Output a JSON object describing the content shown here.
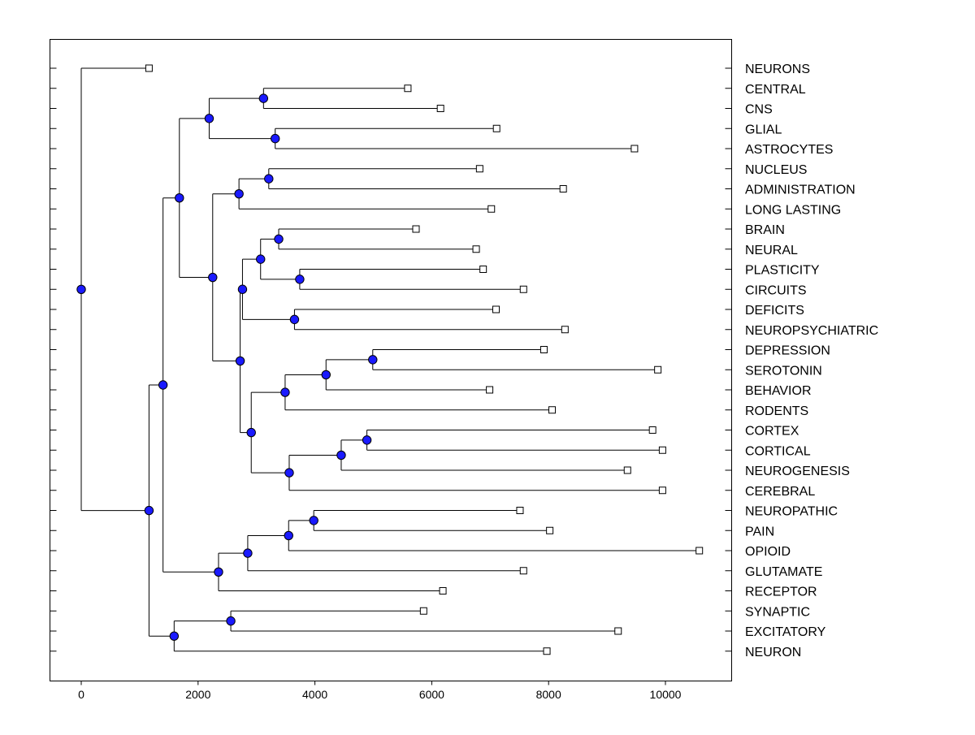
{
  "chart_data": {
    "type": "dendrogram",
    "orientation": "horizontal",
    "x_axis": {
      "ticks": [
        0,
        2000,
        4000,
        6000,
        8000,
        10000
      ],
      "range": [
        -530,
        11080
      ]
    },
    "leaves": [
      {
        "label": "NEURONS",
        "x": 1160
      },
      {
        "label": "CENTRAL",
        "x": 5590
      },
      {
        "label": "CNS",
        "x": 6150
      },
      {
        "label": "GLIAL",
        "x": 7110
      },
      {
        "label": "ASTROCYTES",
        "x": 9470
      },
      {
        "label": "NUCLEUS",
        "x": 6820
      },
      {
        "label": "ADMINISTRATION",
        "x": 8250
      },
      {
        "label": "LONG LASTING",
        "x": 7020
      },
      {
        "label": "BRAIN",
        "x": 5730
      },
      {
        "label": "NEURAL",
        "x": 6760
      },
      {
        "label": "PLASTICITY",
        "x": 6880
      },
      {
        "label": "CIRCUITS",
        "x": 7570
      },
      {
        "label": "DEFICITS",
        "x": 7100
      },
      {
        "label": "NEUROPSYCHIATRIC",
        "x": 8280
      },
      {
        "label": "DEPRESSION",
        "x": 7920
      },
      {
        "label": "SEROTONIN",
        "x": 9870
      },
      {
        "label": "BEHAVIOR",
        "x": 6990
      },
      {
        "label": "RODENTS",
        "x": 8060
      },
      {
        "label": "CORTEX",
        "x": 9780
      },
      {
        "label": "CORTICAL",
        "x": 9950
      },
      {
        "label": "NEUROGENESIS",
        "x": 9350
      },
      {
        "label": "CEREBRAL",
        "x": 9950
      },
      {
        "label": "NEUROPATHIC",
        "x": 7510
      },
      {
        "label": "PAIN",
        "x": 8020
      },
      {
        "label": "OPIOID",
        "x": 10580
      },
      {
        "label": "GLUTAMATE",
        "x": 7570
      },
      {
        "label": "RECEPTOR",
        "x": 6190
      },
      {
        "label": "SYNAPTIC",
        "x": 5860
      },
      {
        "label": "EXCITATORY",
        "x": 9190
      },
      {
        "label": "NEURON",
        "x": 7970
      }
    ],
    "merges": [
      {
        "id": "n_central_cns",
        "x": 3120,
        "children": [
          "L1",
          "L2"
        ]
      },
      {
        "id": "n_glial_astro",
        "x": 3320,
        "children": [
          "L3",
          "L4"
        ]
      },
      {
        "id": "n_cns_group",
        "x": 2190,
        "children": [
          "n_central_cns",
          "n_glial_astro"
        ]
      },
      {
        "id": "n_nucleus_admin",
        "x": 3210,
        "children": [
          "L5",
          "L6"
        ]
      },
      {
        "id": "n_nucleus_group",
        "x": 2700,
        "children": [
          "n_nucleus_admin",
          "L7"
        ]
      },
      {
        "id": "n_brain_neural",
        "x": 3380,
        "children": [
          "L8",
          "L9"
        ]
      },
      {
        "id": "n_plast_circ",
        "x": 3740,
        "children": [
          "L10",
          "L11"
        ]
      },
      {
        "id": "n_brain_group",
        "x": 3070,
        "children": [
          "n_brain_neural",
          "n_plast_circ"
        ]
      },
      {
        "id": "n_deficits",
        "x": 3650,
        "children": [
          "L12",
          "L13"
        ]
      },
      {
        "id": "n_brain_deficits",
        "x": 2760,
        "children": [
          "n_brain_group",
          "n_deficits"
        ]
      },
      {
        "id": "n_depr_sero",
        "x": 4990,
        "children": [
          "L14",
          "L15"
        ]
      },
      {
        "id": "n_depr_behav",
        "x": 4190,
        "children": [
          "n_depr_sero",
          "L16"
        ]
      },
      {
        "id": "n_depr_rodents",
        "x": 3490,
        "children": [
          "n_depr_behav",
          "L17"
        ]
      },
      {
        "id": "n_cortex_cortical",
        "x": 4890,
        "children": [
          "L18",
          "L19"
        ]
      },
      {
        "id": "n_cortex_neurog",
        "x": 4450,
        "children": [
          "n_cortex_cortical",
          "L20"
        ]
      },
      {
        "id": "n_cortex_cerebral",
        "x": 3560,
        "children": [
          "n_cortex_neurog",
          "L21"
        ]
      },
      {
        "id": "n_depr_cortex",
        "x": 2910,
        "children": [
          "n_depr_rodents",
          "n_cortex_cerebral"
        ]
      },
      {
        "id": "n_brain_depr",
        "x": 2720,
        "children": [
          "n_brain_deficits",
          "n_depr_cortex"
        ]
      },
      {
        "id": "n_nucleus_brain",
        "x": 2250,
        "children": [
          "n_nucleus_group",
          "n_brain_depr"
        ]
      },
      {
        "id": "n_central_nucleus",
        "x": 1680,
        "children": [
          "n_cns_group",
          "n_nucleus_brain"
        ]
      },
      {
        "id": "n_neuro_pain",
        "x": 3980,
        "children": [
          "L22",
          "L23"
        ]
      },
      {
        "id": "n_neuro_opioid",
        "x": 3550,
        "children": [
          "n_neuro_pain",
          "L24"
        ]
      },
      {
        "id": "n_neuro_glut",
        "x": 2850,
        "children": [
          "n_neuro_opioid",
          "L25"
        ]
      },
      {
        "id": "n_neuro_receptor",
        "x": 2350,
        "children": [
          "n_neuro_glut",
          "L26"
        ]
      },
      {
        "id": "n_big_pain",
        "x": 1400,
        "children": [
          "n_central_nucleus",
          "n_neuro_receptor"
        ]
      },
      {
        "id": "n_syn_exc",
        "x": 2560,
        "children": [
          "L27",
          "L28"
        ]
      },
      {
        "id": "n_syn_neuron",
        "x": 1590,
        "children": [
          "n_syn_exc",
          "L29"
        ]
      },
      {
        "id": "n_big_syn",
        "x": 1160,
        "children": [
          "n_big_pain",
          "n_syn_neuron"
        ]
      },
      {
        "id": "n_root",
        "x": 0,
        "children": [
          "L0",
          "n_big_syn"
        ]
      }
    ]
  },
  "colors": {
    "node_fill": "#1a1aff",
    "node_stroke": "#000000",
    "line": "#000000",
    "leaf_fill": "#ffffff",
    "background": "#ffffff"
  }
}
